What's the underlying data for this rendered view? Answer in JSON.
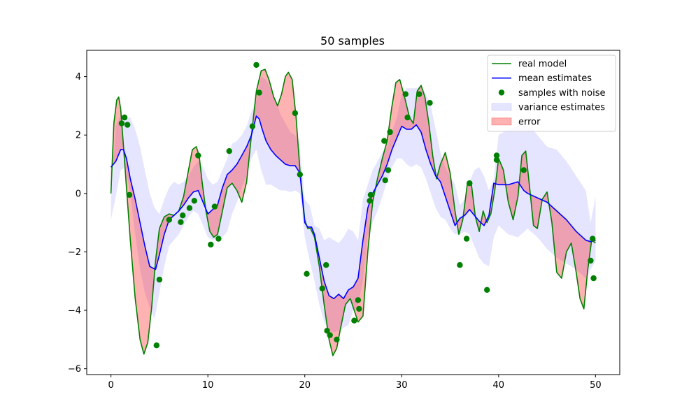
{
  "chart_data": {
    "type": "line",
    "title": "50 samples",
    "xlabel": "",
    "ylabel": "",
    "xlim": [
      -2.5,
      52.5
    ],
    "ylim": [
      -6.2,
      4.9
    ],
    "x_ticks": [
      0,
      10,
      20,
      30,
      40,
      50
    ],
    "y_ticks": [
      -6,
      -4,
      -2,
      0,
      2,
      4
    ],
    "x_tick_labels": [
      "0",
      "10",
      "20",
      "30",
      "40",
      "50"
    ],
    "y_tick_labels": [
      "−6",
      "−4",
      "−2",
      "0",
      "2",
      "4"
    ],
    "grid": false,
    "legend_position": "upper right",
    "colors": {
      "real_model": "#008000",
      "mean_estimates": "#0000ff",
      "samples": "#008000",
      "variance_fill": "#0000ff",
      "error_fill": "#ff0000"
    },
    "series": [
      {
        "name": "real model",
        "kind": "line",
        "x": [
          0,
          0.3,
          0.6,
          0.8,
          1.0,
          1.3,
          1.6,
          2.0,
          2.5,
          3.0,
          3.4,
          3.8,
          4.2,
          4.6,
          5.0,
          5.5,
          6.0,
          6.5,
          7.0,
          7.5,
          8.0,
          8.4,
          8.8,
          9.1,
          9.4,
          9.8,
          10.2,
          10.6,
          11.0,
          11.5,
          12.0,
          12.5,
          13.0,
          13.5,
          14.0,
          14.5,
          15.0,
          15.5,
          15.9,
          16.3,
          16.8,
          17.2,
          17.6,
          18.0,
          18.3,
          18.7,
          19.1,
          19.5,
          20.0,
          20.3,
          20.6,
          21.0,
          21.5,
          22.0,
          22.5,
          22.9,
          23.3,
          23.7,
          24.2,
          24.7,
          25.1,
          25.5,
          26.0,
          26.5,
          27.0,
          27.5,
          28.0,
          28.5,
          29.0,
          29.4,
          29.8,
          30.3,
          30.8,
          31.2,
          31.6,
          32.0,
          32.4,
          32.8,
          33.2,
          33.6,
          34.0,
          34.5,
          35.0,
          35.5,
          35.9,
          36.3,
          36.8,
          37.2,
          37.6,
          38.0,
          38.4,
          38.8,
          39.2,
          39.6,
          40.0,
          40.5,
          41.0,
          41.5,
          42.0,
          42.4,
          42.8,
          43.2,
          43.6,
          44.0,
          44.5,
          45.0,
          45.5,
          46.0,
          46.5,
          47.0,
          47.5,
          48.0,
          48.4,
          48.8,
          49.2,
          49.6,
          50.0
        ],
        "y": [
          0,
          2.4,
          3.2,
          3.3,
          2.9,
          1.6,
          0.2,
          -1.6,
          -3.6,
          -5.0,
          -5.5,
          -5.1,
          -3.9,
          -2.3,
          -1.2,
          -0.8,
          -0.7,
          -0.75,
          -0.6,
          -0.1,
          0.8,
          1.5,
          1.6,
          1.3,
          0.4,
          -0.6,
          -1.3,
          -1.5,
          -1.4,
          -0.6,
          0.2,
          0.35,
          0.1,
          -0.3,
          0.4,
          2.0,
          3.5,
          4.2,
          4.25,
          3.9,
          3.3,
          3.0,
          3.4,
          4.0,
          4.15,
          3.9,
          2.6,
          0.8,
          -0.9,
          -1.2,
          -1.2,
          -1.5,
          -2.5,
          -3.8,
          -5.0,
          -5.55,
          -5.3,
          -4.6,
          -3.8,
          -3.6,
          -4.0,
          -4.4,
          -4.2,
          -2.0,
          -0.3,
          0.5,
          1.2,
          1.8,
          3.0,
          3.8,
          3.9,
          3.3,
          2.6,
          2.4,
          3.5,
          3.7,
          3.3,
          2.4,
          1.3,
          0.5,
          1.0,
          1.4,
          0.7,
          -0.6,
          -1.4,
          -0.9,
          0.4,
          0.3,
          -0.8,
          -1.3,
          -0.6,
          -1.0,
          -0.7,
          0.1,
          1.2,
          0.8,
          -0.3,
          -0.9,
          -0.1,
          1.3,
          1.45,
          0.2,
          -1.1,
          -1.2,
          -0.2,
          0.05,
          -1.0,
          -2.7,
          -2.9,
          -2.0,
          -1.7,
          -2.7,
          -3.6,
          -3.95,
          -2.6,
          -1.6,
          -1.7
        ]
      },
      {
        "name": "mean estimates",
        "kind": "line",
        "x": [
          0,
          0.5,
          1.0,
          1.3,
          1.6,
          2.0,
          2.5,
          3.0,
          3.5,
          4.0,
          4.6,
          5.0,
          5.5,
          6.0,
          6.5,
          7.0,
          7.5,
          8.0,
          8.5,
          9.0,
          9.5,
          10.0,
          10.5,
          11.0,
          11.5,
          12.0,
          12.5,
          13.0,
          13.5,
          14.0,
          14.5,
          15.0,
          15.3,
          15.6,
          16.0,
          16.5,
          17.0,
          17.5,
          18.0,
          18.5,
          19.0,
          19.5,
          20.0,
          20.3,
          20.7,
          21.0,
          21.5,
          22.0,
          22.5,
          23.0,
          23.5,
          24.0,
          24.5,
          25.0,
          25.5,
          26.0,
          26.5,
          27.0,
          27.5,
          28.0,
          28.5,
          29.0,
          29.5,
          30.0,
          30.5,
          31.0,
          31.5,
          32.0,
          32.5,
          33.0,
          33.5,
          34.0,
          34.5,
          35.0,
          35.5,
          36.0,
          36.5,
          37.0,
          37.5,
          38.0,
          38.5,
          39.0,
          39.5,
          40.0,
          41.0,
          42.0,
          42.6,
          43.0,
          44.0,
          45.0,
          46.0,
          47.0,
          48.0,
          49.0,
          49.5,
          50.0
        ],
        "y": [
          0.9,
          1.1,
          1.5,
          1.5,
          1.2,
          0.5,
          -0.2,
          -1.0,
          -1.8,
          -2.5,
          -2.6,
          -2.1,
          -1.4,
          -0.9,
          -0.75,
          -0.6,
          -0.4,
          -0.15,
          0.05,
          0.1,
          -0.3,
          -0.7,
          -0.55,
          -0.4,
          0.2,
          0.65,
          0.8,
          1.0,
          1.3,
          1.6,
          2.0,
          2.65,
          2.55,
          2.2,
          1.8,
          1.5,
          1.3,
          1.15,
          1.0,
          0.95,
          0.95,
          0.7,
          -1.0,
          -1.15,
          -1.15,
          -1.4,
          -2.2,
          -3.0,
          -3.5,
          -3.6,
          -3.45,
          -3.6,
          -3.3,
          -3.2,
          -2.9,
          -1.6,
          -0.5,
          0.0,
          0.3,
          0.6,
          1.0,
          1.5,
          1.9,
          2.3,
          2.2,
          2.2,
          2.35,
          2.1,
          1.5,
          1.0,
          0.6,
          0.4,
          -0.1,
          -0.6,
          -1.1,
          -0.85,
          -0.75,
          -0.55,
          -0.75,
          -0.95,
          -1.1,
          -0.75,
          0.35,
          0.3,
          0.3,
          0.4,
          0.1,
          0.0,
          -0.15,
          -0.3,
          -0.6,
          -0.9,
          -1.3,
          -1.6,
          -1.65,
          -1.6
        ]
      },
      {
        "name": "samples with noise",
        "kind": "scatter",
        "x": [
          1.1,
          1.4,
          1.7,
          1.9,
          4.7,
          5.0,
          6.0,
          7.2,
          7.4,
          8.1,
          8.6,
          9.0,
          10.3,
          10.7,
          11.1,
          12.2,
          14.6,
          15.0,
          15.3,
          19.0,
          19.5,
          20.2,
          21.8,
          22.2,
          22.3,
          22.6,
          23.3,
          25.1,
          25.5,
          25.6,
          26.7,
          26.8,
          28.2,
          28.3,
          28.6,
          28.8,
          30.4,
          30.6,
          31.8,
          32.9,
          36.0,
          36.7,
          37.0,
          38.8,
          39.8,
          39.8,
          42.6,
          49.5,
          49.7,
          49.8
        ],
        "y": [
          2.4,
          2.6,
          2.35,
          -0.05,
          -5.2,
          -2.95,
          -0.9,
          -0.98,
          -0.75,
          -0.5,
          -0.25,
          1.3,
          -1.75,
          -0.45,
          -1.55,
          1.45,
          2.3,
          4.4,
          3.45,
          2.75,
          0.65,
          -2.75,
          -3.25,
          -2.45,
          -4.7,
          -4.85,
          -5.0,
          -4.35,
          -3.65,
          -3.95,
          -0.25,
          -0.05,
          1.8,
          0.45,
          0.8,
          2.1,
          3.4,
          2.6,
          3.4,
          3.1,
          -2.45,
          -1.55,
          0.35,
          -3.3,
          1.3,
          1.15,
          0.8,
          -2.3,
          -1.55,
          -2.9
        ]
      },
      {
        "name": "variance estimates",
        "kind": "band",
        "x": [
          0,
          0.5,
          1.0,
          1.5,
          2.0,
          2.5,
          3.0,
          3.5,
          4.0,
          4.5,
          5.0,
          5.5,
          6.0,
          6.5,
          7.0,
          7.5,
          8.0,
          8.5,
          9.0,
          9.5,
          10.0,
          10.5,
          11.0,
          11.5,
          12.0,
          12.5,
          13.0,
          13.5,
          14.0,
          14.5,
          15.0,
          15.5,
          16.0,
          16.5,
          17.0,
          17.5,
          18.0,
          18.5,
          19.0,
          19.5,
          20.0,
          20.5,
          21.0,
          21.5,
          22.0,
          22.5,
          23.0,
          23.5,
          24.0,
          24.5,
          25.0,
          25.5,
          26.0,
          26.5,
          27.0,
          27.5,
          28.0,
          28.5,
          29.0,
          29.5,
          30.0,
          30.5,
          31.0,
          31.5,
          32.0,
          32.5,
          33.0,
          33.5,
          34.0,
          34.5,
          35.0,
          35.5,
          36.0,
          36.5,
          37.0,
          37.5,
          38.0,
          38.5,
          39.0,
          39.5,
          40.0,
          41.0,
          42.0,
          43.0,
          44.0,
          45.0,
          46.0,
          47.0,
          48.0,
          49.0,
          49.5,
          50.0
        ],
        "lower": [
          -0.9,
          -0.1,
          0.8,
          0.9,
          0.0,
          -1.4,
          -2.6,
          -3.4,
          -3.9,
          -4.3,
          -3.4,
          -2.5,
          -1.8,
          -1.6,
          -1.4,
          -1.1,
          -0.8,
          -0.6,
          -0.7,
          -1.1,
          -1.5,
          -1.6,
          -1.5,
          -1.5,
          -1.3,
          -0.7,
          -0.3,
          0.2,
          0.6,
          1.2,
          1.5,
          0.8,
          0.3,
          0.3,
          0.2,
          0.1,
          0.1,
          0.05,
          0.1,
          0.0,
          -1.5,
          -2.3,
          -3.0,
          -3.8,
          -4.4,
          -4.7,
          -4.75,
          -4.7,
          -4.6,
          -4.5,
          -4.0,
          -3.8,
          -3.0,
          -1.4,
          -1.0,
          -0.6,
          -0.1,
          0.4,
          0.9,
          1.2,
          1.2,
          1.0,
          0.9,
          1.0,
          0.9,
          0.5,
          0.0,
          -0.5,
          -0.8,
          -0.9,
          -1.2,
          -1.4,
          -1.4,
          -1.3,
          -1.4,
          -1.8,
          -2.2,
          -2.4,
          -2.5,
          -1.5,
          -1.1,
          -1.4,
          -1.5,
          -1.2,
          -1.5,
          -1.9,
          -2.2,
          -2.4,
          -2.6,
          -2.9,
          -2.6,
          -2.3
        ],
        "upper": [
          -0.2,
          2.3,
          2.7,
          2.6,
          2.6,
          2.2,
          1.6,
          0.8,
          0.0,
          -0.5,
          -0.7,
          -0.2,
          0.2,
          0.4,
          0.3,
          0.4,
          0.6,
          0.9,
          1.1,
          0.9,
          0.5,
          0.3,
          0.4,
          0.8,
          1.2,
          1.7,
          1.8,
          2.0,
          2.3,
          2.8,
          3.2,
          4.0,
          3.9,
          3.6,
          3.2,
          2.7,
          2.4,
          2.1,
          2.0,
          1.5,
          -0.2,
          -0.4,
          -1.1,
          -1.2,
          -1.6,
          -1.5,
          -1.6,
          -1.7,
          -1.5,
          -1.2,
          -1.3,
          -1.6,
          -0.2,
          0.3,
          0.8,
          1.1,
          1.4,
          1.6,
          2.1,
          2.6,
          3.4,
          3.6,
          3.6,
          3.6,
          3.7,
          3.4,
          3.0,
          2.2,
          1.4,
          0.9,
          0.6,
          0.3,
          -0.4,
          -0.2,
          0.4,
          0.8,
          0.9,
          0.6,
          0.1,
          0.5,
          2.0,
          2.2,
          2.3,
          2.4,
          2.0,
          1.6,
          1.5,
          1.1,
          0.6,
          0.1,
          -1.0,
          -0.1
        ]
      },
      {
        "name": "error",
        "kind": "fill_between",
        "between": [
          "real model",
          "mean estimates"
        ]
      }
    ]
  }
}
